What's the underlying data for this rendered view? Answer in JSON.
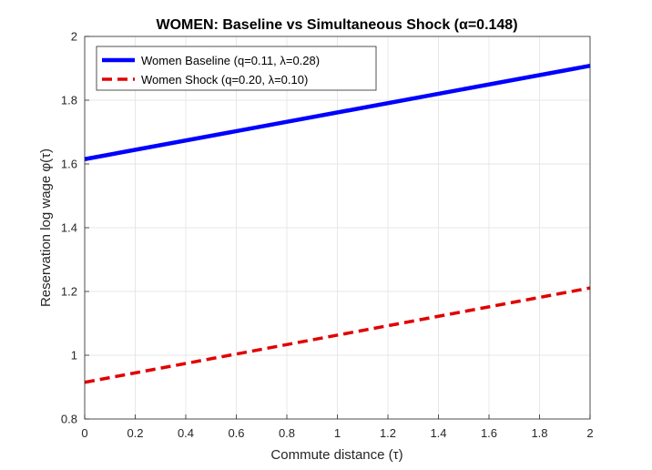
{
  "chart_data": {
    "type": "line",
    "title": "WOMEN: Baseline vs Simultaneous Shock (α=0.148)",
    "xlabel": "Commute distance (τ)",
    "ylabel": "Reservation log wage φ(τ)",
    "xlim": [
      0,
      2
    ],
    "ylim": [
      0.8,
      2
    ],
    "x_ticks": [
      0,
      0.2,
      0.4,
      0.6,
      0.8,
      1,
      1.2,
      1.4,
      1.6,
      1.8,
      2
    ],
    "x_tick_labels": [
      "0",
      "0.2",
      "0.4",
      "0.6",
      "0.8",
      "1",
      "1.2",
      "1.4",
      "1.6",
      "1.8",
      "2"
    ],
    "y_ticks": [
      0.8,
      1,
      1.2,
      1.4,
      1.6,
      1.8,
      2
    ],
    "y_tick_labels": [
      "0.8",
      "1",
      "1.2",
      "1.4",
      "1.6",
      "1.8",
      "2"
    ],
    "grid": true,
    "legend_position": "top-left",
    "series": [
      {
        "name": "Women Baseline (q=0.11, λ=0.28)",
        "x": [
          0,
          2
        ],
        "y": [
          1.615,
          1.908
        ],
        "color": "#0000ff",
        "style": "solid"
      },
      {
        "name": "Women Shock (q=0.20, λ=0.10)",
        "x": [
          0,
          2
        ],
        "y": [
          0.915,
          1.211
        ],
        "color": "#e00000",
        "style": "dashed"
      }
    ]
  }
}
